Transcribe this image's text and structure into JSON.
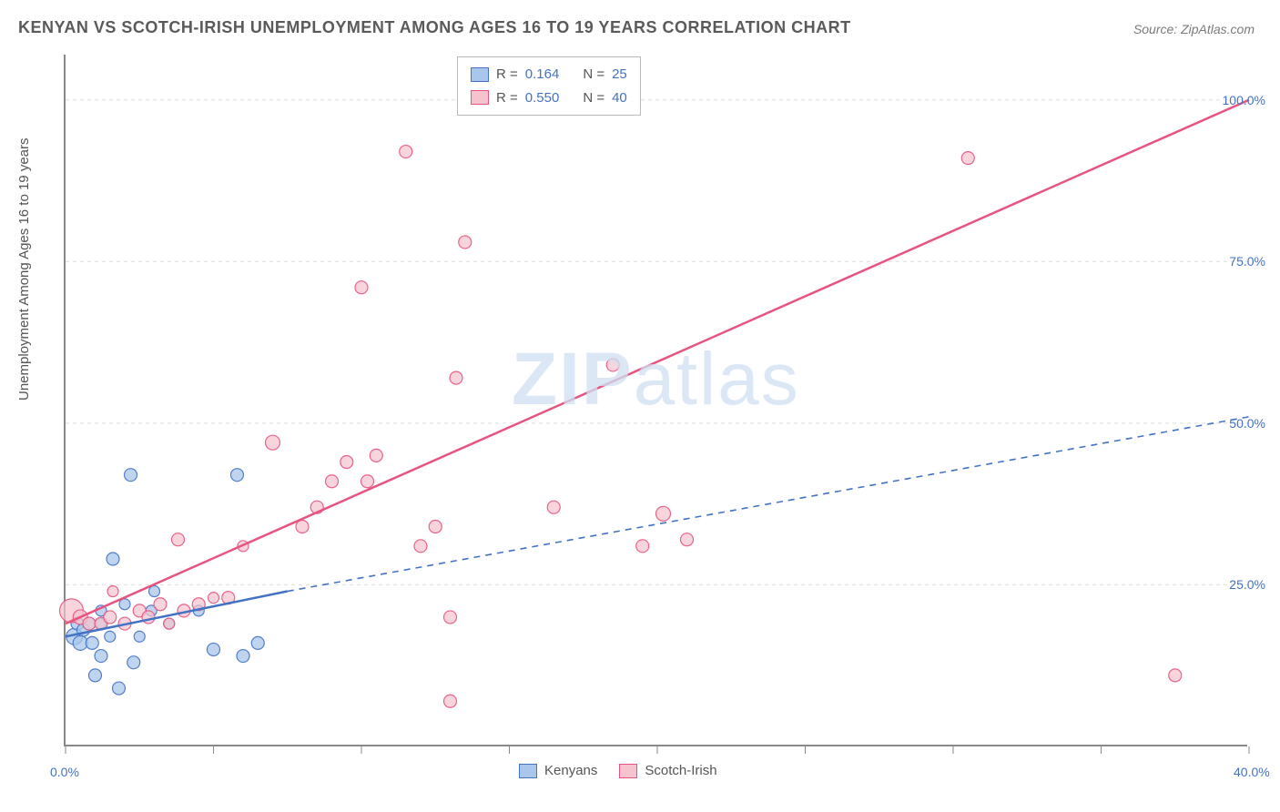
{
  "title": "KENYAN VS SCOTCH-IRISH UNEMPLOYMENT AMONG AGES 16 TO 19 YEARS CORRELATION CHART",
  "source": "Source: ZipAtlas.com",
  "watermark": {
    "part1": "ZIP",
    "part2": "atlas"
  },
  "y_label": "Unemployment Among Ages 16 to 19 years",
  "chart": {
    "type": "scatter",
    "xlim": [
      0,
      40
    ],
    "ylim": [
      0,
      107
    ],
    "x_ticks": [
      0,
      5,
      10,
      15,
      20,
      25,
      30,
      35,
      40
    ],
    "x_tick_labels": {
      "0": "0.0%",
      "40": "40.0%"
    },
    "y_ticks": [
      25,
      50,
      75,
      100
    ],
    "y_tick_labels": {
      "25": "25.0%",
      "50": "50.0%",
      "75": "75.0%",
      "100": "100.0%"
    },
    "grid_color": "#dddddd",
    "axis_color": "#888888",
    "background_color": "#ffffff",
    "series": {
      "kenyans": {
        "label": "Kenyans",
        "fill": "#a9c7ea",
        "stroke": "#4472c4",
        "opacity": 0.75,
        "points": [
          {
            "x": 0.3,
            "y": 17,
            "r": 9
          },
          {
            "x": 0.4,
            "y": 19,
            "r": 7
          },
          {
            "x": 0.6,
            "y": 18,
            "r": 7
          },
          {
            "x": 0.8,
            "y": 19,
            "r": 7
          },
          {
            "x": 0.5,
            "y": 16,
            "r": 8
          },
          {
            "x": 0.9,
            "y": 16,
            "r": 7
          },
          {
            "x": 1.2,
            "y": 14,
            "r": 7
          },
          {
            "x": 1.2,
            "y": 21,
            "r": 6
          },
          {
            "x": 1.0,
            "y": 11,
            "r": 7
          },
          {
            "x": 1.8,
            "y": 9,
            "r": 7
          },
          {
            "x": 2.3,
            "y": 13,
            "r": 7
          },
          {
            "x": 1.5,
            "y": 17,
            "r": 6
          },
          {
            "x": 1.2,
            "y": 19,
            "r": 6
          },
          {
            "x": 2.0,
            "y": 22,
            "r": 6
          },
          {
            "x": 2.5,
            "y": 17,
            "r": 6
          },
          {
            "x": 1.6,
            "y": 29,
            "r": 7
          },
          {
            "x": 2.9,
            "y": 21,
            "r": 6
          },
          {
            "x": 3.0,
            "y": 24,
            "r": 6
          },
          {
            "x": 2.2,
            "y": 42,
            "r": 7
          },
          {
            "x": 4.5,
            "y": 21,
            "r": 6
          },
          {
            "x": 5.0,
            "y": 15,
            "r": 7
          },
          {
            "x": 6.0,
            "y": 14,
            "r": 7
          },
          {
            "x": 5.8,
            "y": 42,
            "r": 7
          },
          {
            "x": 6.5,
            "y": 16,
            "r": 7
          },
          {
            "x": 3.5,
            "y": 19,
            "r": 6
          }
        ],
        "regression": {
          "solid": {
            "x1": 0,
            "y1": 17,
            "x2": 7.5,
            "y2": 24
          },
          "dashed": {
            "x1": 7.5,
            "y1": 24,
            "x2": 40,
            "y2": 51
          }
        },
        "line_color": "#4472c4",
        "line_width": 2.5,
        "R": "0.164",
        "N": "25"
      },
      "scotch_irish": {
        "label": "Scotch-Irish",
        "fill": "#f5c3cd",
        "stroke": "#e75480",
        "opacity": 0.7,
        "points": [
          {
            "x": 0.2,
            "y": 21,
            "r": 13
          },
          {
            "x": 0.5,
            "y": 20,
            "r": 8
          },
          {
            "x": 0.8,
            "y": 19,
            "r": 7
          },
          {
            "x": 1.2,
            "y": 19,
            "r": 7
          },
          {
            "x": 1.5,
            "y": 20,
            "r": 7
          },
          {
            "x": 1.6,
            "y": 24,
            "r": 6
          },
          {
            "x": 2.0,
            "y": 19,
            "r": 7
          },
          {
            "x": 2.5,
            "y": 21,
            "r": 7
          },
          {
            "x": 2.8,
            "y": 20,
            "r": 7
          },
          {
            "x": 3.2,
            "y": 22,
            "r": 7
          },
          {
            "x": 3.5,
            "y": 19,
            "r": 6
          },
          {
            "x": 4.0,
            "y": 21,
            "r": 7
          },
          {
            "x": 4.5,
            "y": 22,
            "r": 7
          },
          {
            "x": 3.8,
            "y": 32,
            "r": 7
          },
          {
            "x": 5.0,
            "y": 23,
            "r": 6
          },
          {
            "x": 5.5,
            "y": 23,
            "r": 7
          },
          {
            "x": 6.0,
            "y": 31,
            "r": 6
          },
          {
            "x": 7.0,
            "y": 47,
            "r": 8
          },
          {
            "x": 8.0,
            "y": 34,
            "r": 7
          },
          {
            "x": 8.5,
            "y": 37,
            "r": 7
          },
          {
            "x": 9.0,
            "y": 41,
            "r": 7
          },
          {
            "x": 9.5,
            "y": 44,
            "r": 7
          },
          {
            "x": 10.2,
            "y": 41,
            "r": 7
          },
          {
            "x": 10.5,
            "y": 45,
            "r": 7
          },
          {
            "x": 10.0,
            "y": 71,
            "r": 7
          },
          {
            "x": 11.5,
            "y": 92,
            "r": 7
          },
          {
            "x": 12.0,
            "y": 31,
            "r": 7
          },
          {
            "x": 12.5,
            "y": 34,
            "r": 7
          },
          {
            "x": 13.0,
            "y": 20,
            "r": 7
          },
          {
            "x": 13.0,
            "y": 7,
            "r": 7
          },
          {
            "x": 13.2,
            "y": 57,
            "r": 7
          },
          {
            "x": 13.5,
            "y": 78,
            "r": 7
          },
          {
            "x": 15.5,
            "y": 100,
            "r": 7
          },
          {
            "x": 16.5,
            "y": 37,
            "r": 7
          },
          {
            "x": 18.5,
            "y": 59,
            "r": 7
          },
          {
            "x": 19.5,
            "y": 31,
            "r": 7
          },
          {
            "x": 20.2,
            "y": 36,
            "r": 8
          },
          {
            "x": 21.0,
            "y": 32,
            "r": 7
          },
          {
            "x": 30.5,
            "y": 91,
            "r": 7
          },
          {
            "x": 37.5,
            "y": 11,
            "r": 7
          }
        ],
        "regression": {
          "x1": 0,
          "y1": 19,
          "x2": 40,
          "y2": 100
        },
        "line_color": "#e75480",
        "line_width": 2.5,
        "R": "0.550",
        "N": "40"
      }
    },
    "legend_top": {
      "r_label": "R =",
      "n_label": "N ="
    },
    "title_fontsize": 18,
    "label_fontsize": 15,
    "tick_fontsize": 14
  }
}
